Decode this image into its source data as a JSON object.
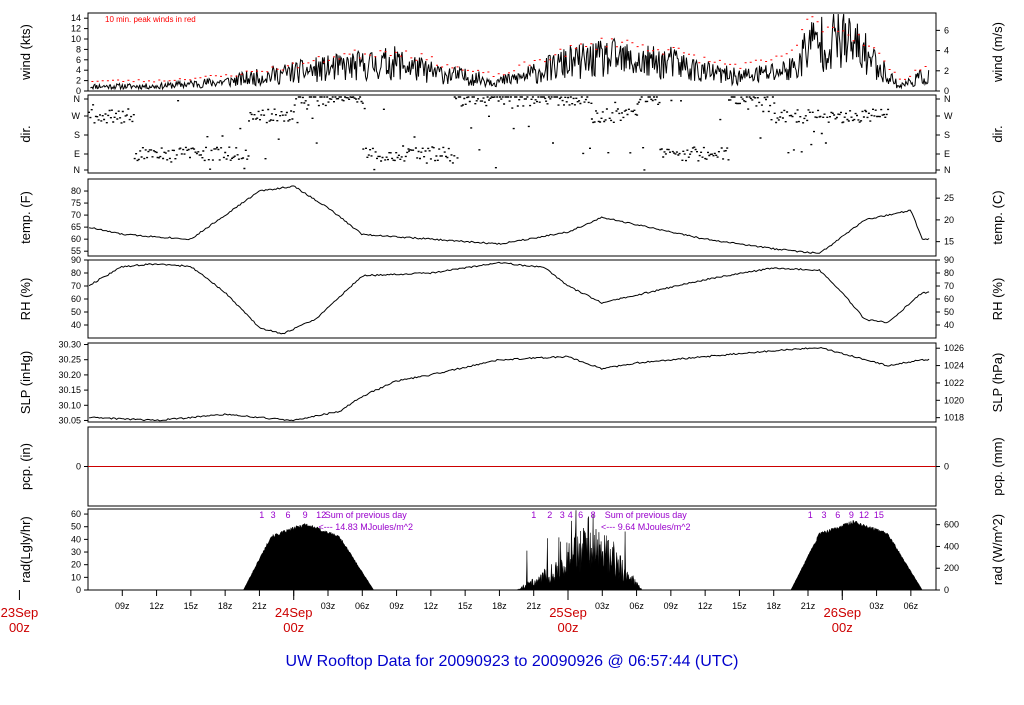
{
  "footer_title": "UW Rooftop Data for 20090923  to  20090926 @ 06:57:44  (UTC)",
  "colors": {
    "peak": "#ff0000",
    "purple": "#9900cc",
    "date": "#cc0000",
    "title": "#0000cc",
    "zero_line": "#cc0000"
  },
  "x_ticks": [
    "09z",
    "12z",
    "15z",
    "18z",
    "21z",
    "03z",
    "06z",
    "09z",
    "12z",
    "15z",
    "18z",
    "21z",
    "03z",
    "06z",
    "09z",
    "12z",
    "15z",
    "18z",
    "21z",
    "03z",
    "06z"
  ],
  "dates": [
    {
      "day": "23Sep",
      "hour": "00z"
    },
    {
      "day": "24Sep",
      "hour": "00z"
    },
    {
      "day": "25Sep",
      "hour": "00z"
    },
    {
      "day": "26Sep",
      "hour": "00z"
    }
  ],
  "chart_data": [
    {
      "type": "line",
      "ylabel": "wind (kts)",
      "y2label": "wind (m/s)",
      "yticks": [
        0,
        2,
        4,
        6,
        8,
        10,
        12,
        14
      ],
      "y2ticks": [
        0,
        2,
        4,
        6
      ],
      "annotation": "10 min. peak winds in red",
      "series": [
        {
          "name": "wind",
          "x": [
            0,
            6,
            12,
            18,
            22,
            27,
            30,
            33,
            36,
            38,
            42,
            46,
            48,
            51,
            54,
            57,
            60,
            62,
            63,
            66,
            68,
            71,
            73
          ],
          "values": [
            1,
            1,
            2,
            4,
            5,
            6,
            4,
            3,
            2,
            3,
            6,
            7,
            6,
            6,
            4,
            3,
            4,
            5,
            10,
            11,
            8,
            1,
            3
          ]
        },
        {
          "name": "10 min. peak winds",
          "x": [
            0,
            6,
            12,
            18,
            22,
            27,
            30,
            33,
            36,
            38,
            42,
            46,
            48,
            51,
            54,
            57,
            60,
            62,
            63,
            66,
            68,
            71,
            73
          ],
          "values": [
            2,
            2,
            3,
            5,
            7,
            8,
            6,
            4,
            3,
            5,
            8,
            10,
            9,
            8,
            6,
            5,
            6,
            9,
            14,
            12,
            10,
            2,
            5
          ]
        }
      ]
    },
    {
      "type": "scatter",
      "ylabel": "dir.",
      "y2label": "dir.",
      "ytick_labels": [
        "N",
        "E",
        "S",
        "W",
        "N"
      ],
      "series": [
        {
          "name": "dir",
          "x": [
            0,
            2,
            4,
            6,
            8,
            10,
            14,
            16,
            18,
            20,
            24,
            28,
            32,
            35,
            40,
            44,
            48,
            50,
            52,
            56,
            60,
            62,
            64,
            66,
            68,
            70
          ],
          "values": [
            "W",
            "W",
            "E",
            "E",
            "E",
            "E",
            "W",
            "W",
            "N",
            "N",
            "E",
            "E",
            "N",
            "N",
            "N",
            "W",
            "N",
            "E",
            "E",
            "N",
            "W",
            "W",
            "W",
            "W",
            "W",
            "N"
          ]
        }
      ]
    },
    {
      "type": "line",
      "ylabel": "temp. (F)",
      "y2label": "temp. (C)",
      "yticks": [
        55,
        60,
        65,
        70,
        75,
        80
      ],
      "y2ticks": [
        15,
        20,
        25
      ],
      "series": [
        {
          "name": "temp",
          "x": [
            0,
            3,
            6,
            9,
            12,
            15,
            18,
            21,
            24,
            30,
            36,
            42,
            45,
            48,
            54,
            60,
            64,
            66,
            68,
            72,
            73
          ],
          "values": [
            65,
            62,
            61,
            60,
            70,
            80,
            82,
            73,
            62,
            60,
            58,
            63,
            69,
            66,
            60,
            56,
            54,
            61,
            68,
            72,
            60
          ]
        }
      ]
    },
    {
      "type": "line",
      "ylabel": "RH (%)",
      "y2label": "RH (%)",
      "yticks": [
        40,
        50,
        60,
        70,
        80,
        90
      ],
      "y2ticks": [
        40,
        50,
        60,
        70,
        80,
        90
      ],
      "series": [
        {
          "name": "RH",
          "x": [
            0,
            3,
            6,
            9,
            12,
            15,
            17,
            20,
            24,
            30,
            36,
            40,
            42,
            45,
            48,
            54,
            60,
            64,
            66,
            68,
            70,
            73
          ],
          "values": [
            70,
            85,
            87,
            85,
            65,
            38,
            33,
            45,
            78,
            80,
            88,
            84,
            70,
            57,
            63,
            75,
            84,
            82,
            65,
            44,
            42,
            65
          ]
        }
      ]
    },
    {
      "type": "line",
      "ylabel": "SLP (inHg)",
      "y2label": "SLP (hPa)",
      "yticks": [
        30.05,
        30.1,
        30.15,
        30.2,
        30.25,
        30.3
      ],
      "y2ticks": [
        1018,
        1020,
        1022,
        1024,
        1026
      ],
      "series": [
        {
          "name": "SLP",
          "x": [
            0,
            6,
            12,
            18,
            22,
            24,
            27,
            30,
            36,
            42,
            45,
            48,
            54,
            60,
            64,
            66,
            70,
            73
          ],
          "values": [
            30.06,
            30.05,
            30.07,
            30.05,
            30.08,
            30.13,
            30.18,
            30.2,
            30.25,
            30.26,
            30.22,
            30.24,
            30.26,
            30.28,
            30.29,
            30.27,
            30.23,
            30.25
          ]
        }
      ]
    },
    {
      "type": "line",
      "ylabel": "pcp. (in)",
      "y2label": "pcp. (mm)",
      "yticks": [
        0
      ],
      "y2ticks": [
        0
      ],
      "series": [
        {
          "name": "pcp",
          "x": [
            0,
            73
          ],
          "values": [
            0,
            0
          ]
        }
      ]
    },
    {
      "type": "area",
      "ylabel": "rad(Lgly/hr)",
      "y2label": "rad (W/m^2)",
      "yticks": [
        0,
        10,
        20,
        30,
        40,
        50,
        60
      ],
      "y2ticks": [
        0,
        200,
        400,
        600
      ],
      "annotations": [
        "Sum of previous day",
        "<--- 14.83 MJoules/m^2",
        "Sum of previous day",
        "<--- 9.64 MJoules/m^2"
      ],
      "hour_labels": [
        {
          "x": 15.2,
          "label": "1"
        },
        {
          "x": 16.2,
          "label": "3"
        },
        {
          "x": 17.5,
          "label": "6"
        },
        {
          "x": 19.0,
          "label": "9"
        },
        {
          "x": 20.4,
          "label": "12"
        },
        {
          "x": 39.0,
          "label": "1"
        },
        {
          "x": 40.4,
          "label": "2"
        },
        {
          "x": 41.5,
          "label": "3"
        },
        {
          "x": 42.2,
          "label": "4"
        },
        {
          "x": 43.1,
          "label": "6"
        },
        {
          "x": 44.2,
          "label": "8"
        },
        {
          "x": 63.2,
          "label": "1"
        },
        {
          "x": 64.4,
          "label": "3"
        },
        {
          "x": 65.6,
          "label": "6"
        },
        {
          "x": 66.8,
          "label": "9"
        },
        {
          "x": 67.9,
          "label": "12"
        },
        {
          "x": 69.2,
          "label": "15"
        }
      ],
      "series": [
        {
          "name": "rad",
          "x": [
            13.6,
            16,
            19,
            22,
            25,
            37.5,
            41,
            44,
            48.5,
            61.5,
            64,
            67,
            70,
            73
          ],
          "values": [
            0,
            42,
            52,
            42,
            0,
            0,
            20,
            55,
            0,
            0,
            44,
            54,
            44,
            0
          ]
        }
      ]
    }
  ]
}
